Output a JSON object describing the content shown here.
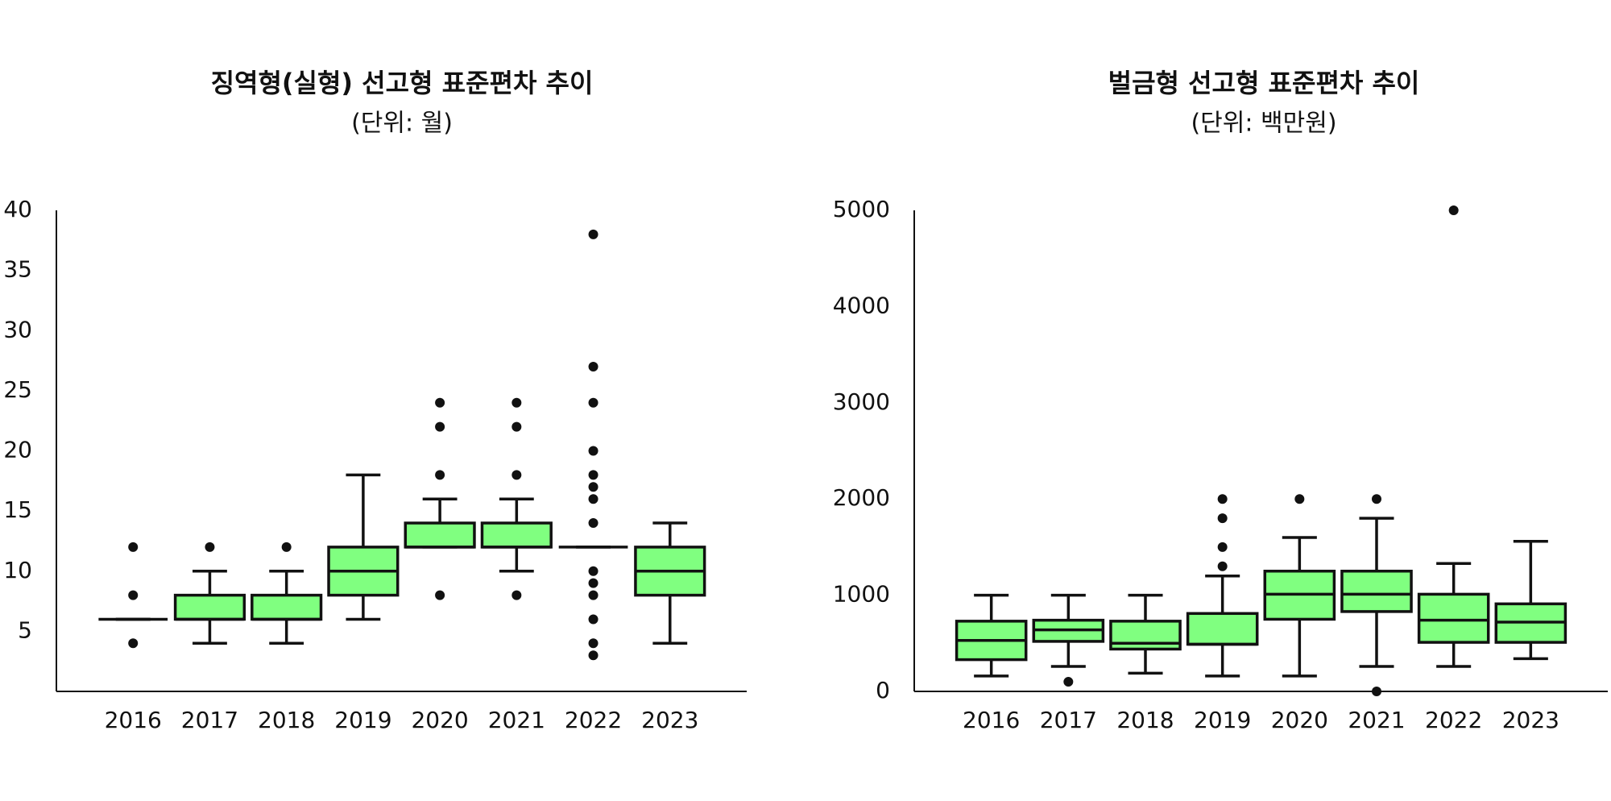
{
  "chart_data": [
    {
      "type": "box",
      "title": "징역형(실형) 선고형 표준편차 추이",
      "subtitle": "(단위: 월)",
      "categories": [
        "2016",
        "2017",
        "2018",
        "2019",
        "2020",
        "2021",
        "2022",
        "2023"
      ],
      "color": "#80ff80",
      "boxes": [
        {
          "whisker_low": 6,
          "q1": 6,
          "median": 6,
          "q3": 6,
          "whisker_high": 6,
          "outliers": [
            12,
            8,
            4
          ]
        },
        {
          "whisker_low": 4,
          "q1": 6,
          "median": 6,
          "q3": 8,
          "whisker_high": 10,
          "outliers": [
            12
          ]
        },
        {
          "whisker_low": 4,
          "q1": 6,
          "median": 6,
          "q3": 8,
          "whisker_high": 10,
          "outliers": [
            12
          ]
        },
        {
          "whisker_low": 6,
          "q1": 8,
          "median": 10,
          "q3": 12,
          "whisker_high": 18,
          "outliers": []
        },
        {
          "whisker_low": 12,
          "q1": 12,
          "median": 12,
          "q3": 14,
          "whisker_high": 16,
          "outliers": [
            24,
            22,
            18,
            8
          ]
        },
        {
          "whisker_low": 10,
          "q1": 12,
          "median": 12,
          "q3": 14,
          "whisker_high": 16,
          "outliers": [
            24,
            22,
            18,
            8
          ]
        },
        {
          "whisker_low": 12,
          "q1": 12,
          "median": 12,
          "q3": 12,
          "whisker_high": 12,
          "outliers": [
            38,
            27,
            24,
            20,
            18,
            17,
            16,
            14,
            10,
            9,
            8,
            6,
            4,
            3
          ]
        },
        {
          "whisker_low": 4,
          "q1": 8,
          "median": 10,
          "q3": 12,
          "whisker_high": 14,
          "outliers": []
        }
      ],
      "ylim": [
        0,
        40
      ],
      "yticks": [
        5,
        10,
        15,
        20,
        25,
        30,
        35,
        40
      ]
    },
    {
      "type": "box",
      "title": "벌금형 선고형 표준편차 추이",
      "subtitle": "(단위: 백만원)",
      "categories": [
        "2016",
        "2017",
        "2018",
        "2019",
        "2020",
        "2021",
        "2022",
        "2023"
      ],
      "color": "#80ff80",
      "boxes": [
        {
          "whisker_low": 160,
          "q1": 330,
          "median": 530,
          "q3": 730,
          "whisker_high": 1000,
          "outliers": []
        },
        {
          "whisker_low": 260,
          "q1": 520,
          "median": 640,
          "q3": 740,
          "whisker_high": 1000,
          "outliers": [
            100
          ]
        },
        {
          "whisker_low": 190,
          "q1": 440,
          "median": 500,
          "q3": 730,
          "whisker_high": 1000,
          "outliers": []
        },
        {
          "whisker_low": 160,
          "q1": 490,
          "median": 490,
          "q3": 810,
          "whisker_high": 1200,
          "outliers": [
            2000,
            1800,
            1500,
            1300
          ]
        },
        {
          "whisker_low": 160,
          "q1": 750,
          "median": 1010,
          "q3": 1250,
          "whisker_high": 1600,
          "outliers": [
            2000
          ]
        },
        {
          "whisker_low": 260,
          "q1": 830,
          "median": 1010,
          "q3": 1250,
          "whisker_high": 1800,
          "outliers": [
            2000,
            0
          ]
        },
        {
          "whisker_low": 260,
          "q1": 510,
          "median": 740,
          "q3": 1010,
          "whisker_high": 1330,
          "outliers": [
            5000
          ]
        },
        {
          "whisker_low": 340,
          "q1": 510,
          "median": 720,
          "q3": 910,
          "whisker_high": 1560,
          "outliers": []
        }
      ],
      "ylim": [
        0,
        5000
      ],
      "yticks": [
        0,
        1000,
        2000,
        3000,
        4000,
        5000
      ]
    }
  ]
}
